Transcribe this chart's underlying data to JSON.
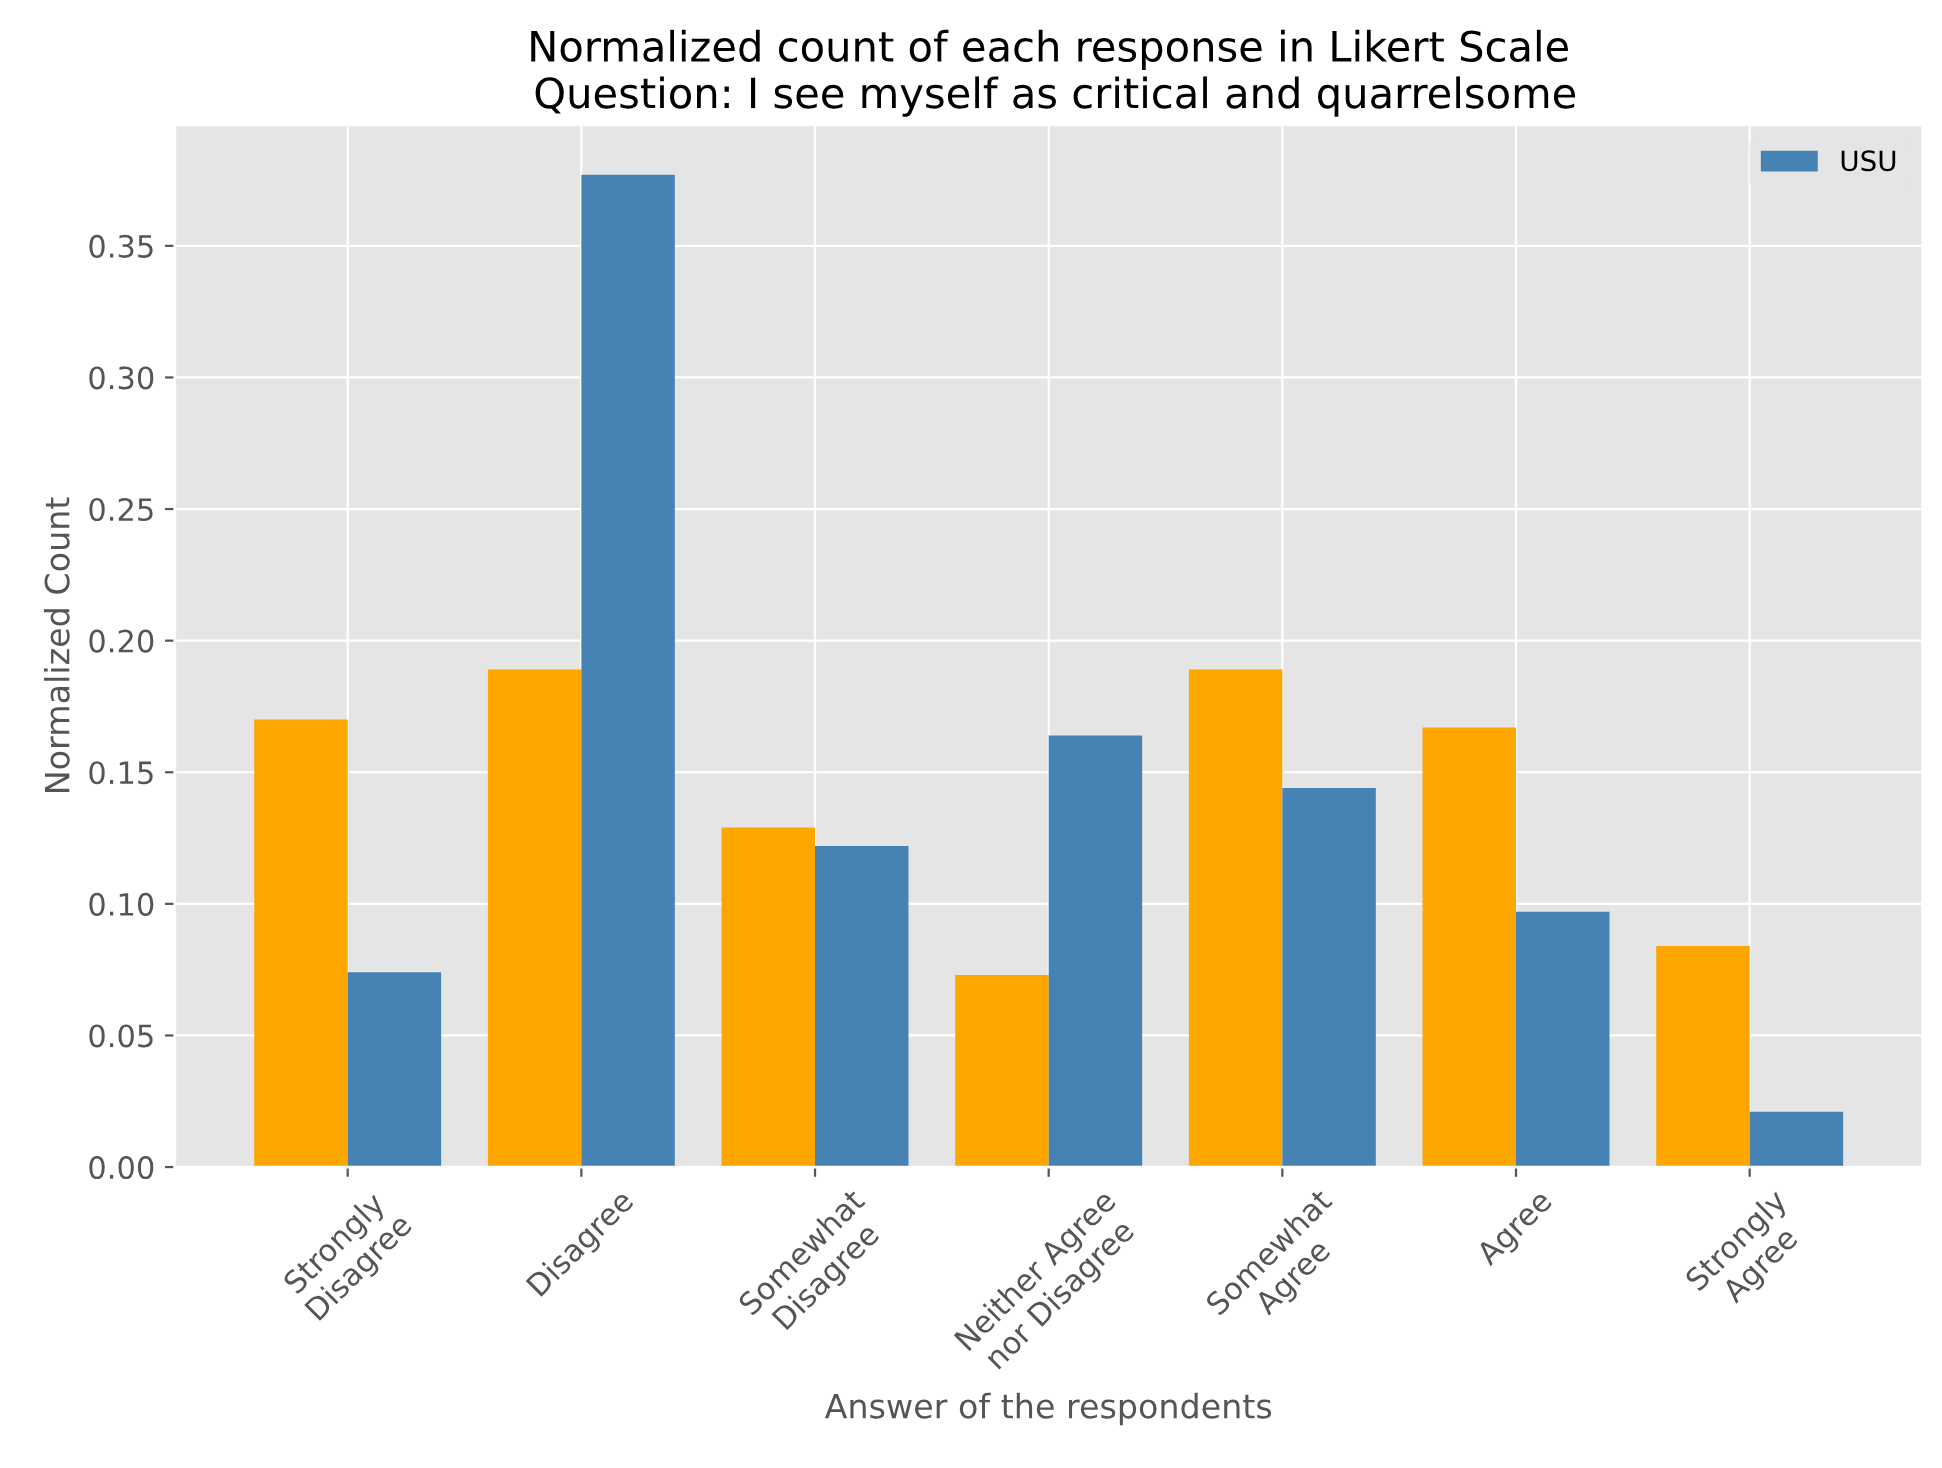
{
  "chart_data": {
    "type": "bar",
    "title": "Normalized count of each response in Likert Scale\n Question: I see myself as critical and quarrelsome",
    "xlabel": "Answer of the respondents",
    "ylabel": "Normalized Count",
    "categories": [
      "Strongly\nDisagree",
      "Disagree",
      "Somewhat\nDisagree",
      "Neither Agree\nnor Disagree",
      "Somewhat\nAgree",
      "Agree",
      "Strongly\nAgree"
    ],
    "series": [
      {
        "color": "#ffa500",
        "values": [
          0.17,
          0.189,
          0.129,
          0.073,
          0.189,
          0.167,
          0.084
        ]
      },
      {
        "name": "USU",
        "color": "#4682b4",
        "values": [
          0.074,
          0.377,
          0.122,
          0.164,
          0.144,
          0.097,
          0.021
        ]
      }
    ],
    "ylim": [
      0,
      0.396
    ],
    "yticks": [
      {
        "value": 0,
        "label": "0.00"
      },
      {
        "value": 0.05,
        "label": "0.05"
      },
      {
        "value": 0.1,
        "label": "0.10"
      },
      {
        "value": 0.15,
        "label": "0.15"
      },
      {
        "value": 0.2,
        "label": "0.20"
      },
      {
        "value": 0.25,
        "label": "0.25"
      },
      {
        "value": 0.3,
        "label": "0.30"
      },
      {
        "value": 0.35,
        "label": "0.35"
      }
    ],
    "grid": true,
    "legend": "top right"
  }
}
